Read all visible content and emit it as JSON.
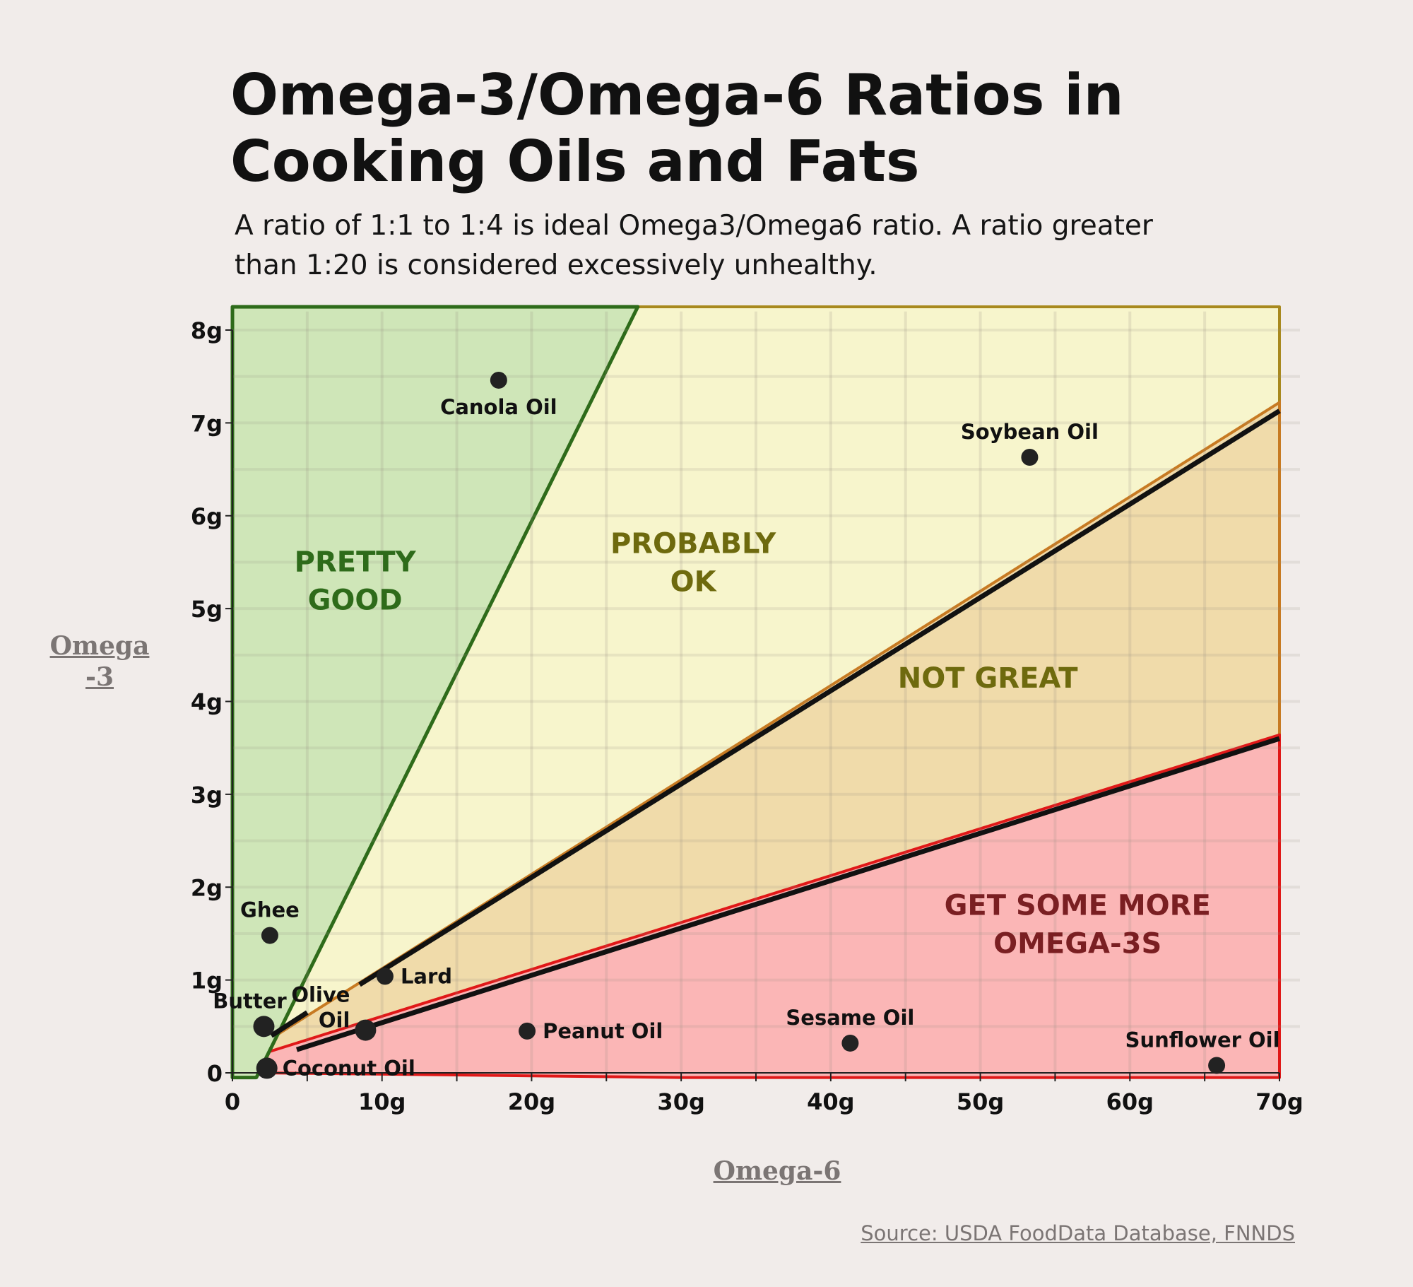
{
  "title_line1": "Omega-3/Omega-6 Ratios in",
  "title_line2": "Cooking Oils and Fats",
  "subtitle": "A ratio of 1:1 to 1:4 is ideal Omega3/Omega6 ratio. A ratio greater than 1:20 is considered excessively unhealthy.",
  "source": "Source: USDA FoodData Database, FNNDS",
  "colors": {
    "green_fill": "#cfe6b8",
    "green_line": "#2e6b1a",
    "yellow_fill": "#f7f5cc",
    "yellow_line": "#a8891e",
    "orange_fill": "#f0dbaa",
    "orange_line": "#c77a22",
    "red_fill": "#fbb6b6",
    "red_line": "#e01818",
    "point": "#222222",
    "bg": "#f1ecea"
  },
  "chart_data": {
    "type": "scatter",
    "title": "Omega-3/Omega-6 Ratios in Cooking Oils and Fats",
    "xlabel": "Omega-6",
    "ylabel": "Omega-3",
    "xlim": [
      0,
      70
    ],
    "ylim": [
      0,
      8
    ],
    "x_ticks": [
      {
        "v": 0,
        "label": "0"
      },
      {
        "v": 10,
        "label": "10g"
      },
      {
        "v": 20,
        "label": "20g"
      },
      {
        "v": 30,
        "label": "30g"
      },
      {
        "v": 40,
        "label": "40g"
      },
      {
        "v": 50,
        "label": "50g"
      },
      {
        "v": 60,
        "label": "60g"
      },
      {
        "v": 70,
        "label": "70g"
      }
    ],
    "y_ticks": [
      {
        "v": 0,
        "label": "0"
      },
      {
        "v": 1,
        "label": "1g"
      },
      {
        "v": 2,
        "label": "2g"
      },
      {
        "v": 3,
        "label": "3g"
      },
      {
        "v": 4,
        "label": "4g"
      },
      {
        "v": 5,
        "label": "5g"
      },
      {
        "v": 6,
        "label": "6g"
      },
      {
        "v": 7,
        "label": "7g"
      },
      {
        "v": 8,
        "label": "8g"
      }
    ],
    "grid": true,
    "points": [
      {
        "name": "Canola Oil",
        "omega6": 17.8,
        "omega3": 7.46,
        "label_pos": "below"
      },
      {
        "name": "Soybean Oil",
        "omega6": 53.3,
        "omega3": 6.63,
        "label_pos": "above"
      },
      {
        "name": "Ghee",
        "omega6": 2.5,
        "omega3": 1.48,
        "label_pos": "above"
      },
      {
        "name": "Butter",
        "omega6": 2.1,
        "omega3": 0.5,
        "label_pos": "above-left"
      },
      {
        "name": "Lard",
        "omega6": 10.2,
        "omega3": 1.04,
        "label_pos": "right"
      },
      {
        "name": "Olive Oil",
        "omega6": 8.9,
        "omega3": 0.46,
        "label_pos": "left"
      },
      {
        "name": "Coconut Oil",
        "omega6": 2.3,
        "omega3": 0.05,
        "label_pos": "right"
      },
      {
        "name": "Peanut Oil",
        "omega6": 19.7,
        "omega3": 0.45,
        "label_pos": "right"
      },
      {
        "name": "Sesame Oil",
        "omega6": 41.3,
        "omega3": 0.32,
        "label_pos": "above"
      },
      {
        "name": "Sunflower Oil",
        "omega6": 65.8,
        "omega3": 0.08,
        "label_pos": "above-left"
      }
    ],
    "zones": [
      {
        "name": "pretty-good",
        "label_lines": [
          "PRETTY",
          "GOOD"
        ],
        "color_key": "green"
      },
      {
        "name": "probably-ok",
        "label_lines": [
          "PROBABLY",
          "OK"
        ],
        "color_key": "yellow"
      },
      {
        "name": "not-great",
        "label_lines": [
          "NOT GREAT"
        ],
        "color_key": "orange"
      },
      {
        "name": "get-some-more",
        "label_lines": [
          "GET SOME MORE",
          "OMEGA-3S"
        ],
        "color_key": "red"
      }
    ],
    "ratio_lines": [
      {
        "name": "ratio-1-10",
        "from": [
          8.5,
          0.95
        ],
        "to": [
          70,
          7.13
        ]
      },
      {
        "name": "ratio-1-20",
        "from": [
          4.3,
          0.25
        ],
        "to": [
          70,
          3.6
        ]
      }
    ]
  }
}
